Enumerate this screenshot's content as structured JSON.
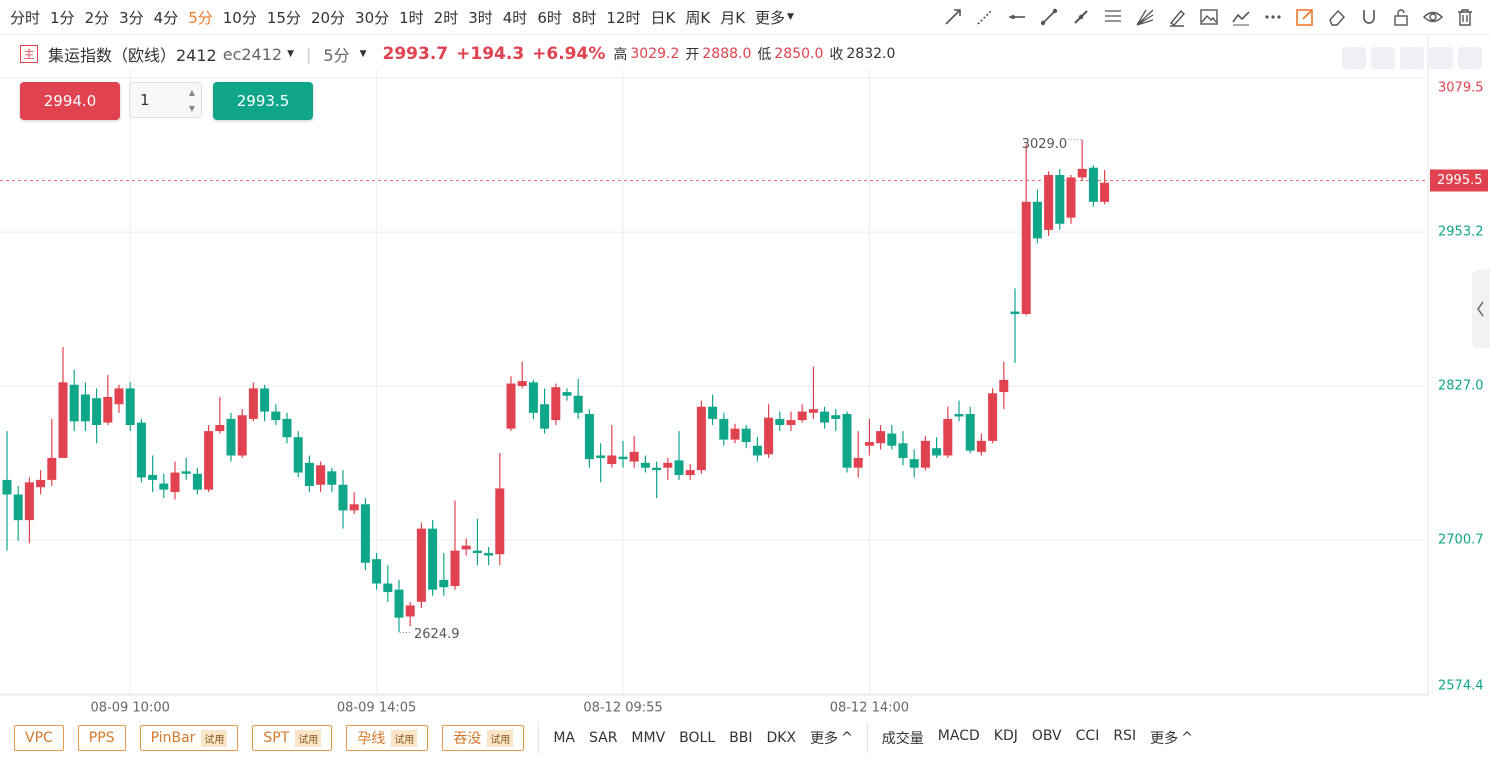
{
  "toolbar": {
    "periods": [
      {
        "label": "分时"
      },
      {
        "label": "1分"
      },
      {
        "label": "2分"
      },
      {
        "label": "3分"
      },
      {
        "label": "4分"
      },
      {
        "label": "5分",
        "active": true
      },
      {
        "label": "10分"
      },
      {
        "label": "15分"
      },
      {
        "label": "20分"
      },
      {
        "label": "30分"
      },
      {
        "label": "1时"
      },
      {
        "label": "2时"
      },
      {
        "label": "3时"
      },
      {
        "label": "4时"
      },
      {
        "label": "6时"
      },
      {
        "label": "8时"
      },
      {
        "label": "12时"
      },
      {
        "label": "日K"
      },
      {
        "label": "周K"
      },
      {
        "label": "月K"
      }
    ],
    "more": "更多"
  },
  "symbol_bar": {
    "badge": "主",
    "name": "集运指数（欧线）2412",
    "code": "ec2412",
    "period": "5分",
    "last": "2993.7",
    "change": "+194.3",
    "change_pct": "+6.94%",
    "high_label": "高",
    "high": "3029.2",
    "open_label": "开",
    "open": "2888.0",
    "low_label": "低",
    "low": "2850.0",
    "close_label": "收",
    "close": "2832.0"
  },
  "order": {
    "sell_price": "2994.0",
    "quantity": "1",
    "buy_price": "2993.5"
  },
  "chart_data": {
    "type": "candlestick",
    "categories": [
      null,
      null,
      null,
      null,
      null,
      null,
      null,
      null,
      null,
      null,
      null,
      "08-09 10:00",
      null,
      null,
      null,
      null,
      null,
      null,
      null,
      null,
      null,
      null,
      null,
      null,
      null,
      null,
      null,
      null,
      null,
      null,
      null,
      null,
      null,
      "08-09 14:05",
      null,
      null,
      null,
      null,
      null,
      null,
      null,
      null,
      null,
      null,
      null,
      null,
      null,
      null,
      null,
      null,
      null,
      null,
      null,
      null,
      null,
      "08-12 09:55",
      null,
      null,
      null,
      null,
      null,
      null,
      null,
      null,
      null,
      null,
      null,
      null,
      null,
      null,
      null,
      null,
      null,
      null,
      null,
      null,
      null,
      "08-12 14:00",
      null,
      null,
      null,
      null,
      null,
      null,
      null,
      null,
      null,
      null,
      null,
      null,
      null,
      null,
      null,
      null,
      null,
      null,
      null,
      null,
      null
    ],
    "open": [
      2750,
      2738,
      2717,
      2744,
      2750,
      2768,
      2828,
      2820,
      2817,
      2797,
      2812,
      2825,
      2797,
      2754,
      2747,
      2740,
      2757,
      2755,
      2742,
      2790,
      2800,
      2770,
      2800,
      2825,
      2806,
      2800,
      2785,
      2764,
      2746,
      2757,
      2746,
      2725,
      2730,
      2685,
      2665,
      2660,
      2638,
      2650,
      2710,
      2668,
      2663,
      2693,
      2692,
      2690,
      2689,
      2792,
      2827,
      2830,
      2812,
      2799,
      2822,
      2819,
      2804,
      2770,
      2763,
      2769,
      2765,
      2764,
      2760,
      2760,
      2766,
      2754,
      2758,
      2810,
      2800,
      2783,
      2792,
      2778,
      2771,
      2800,
      2795,
      2799,
      2805,
      2806,
      2803,
      2804,
      2760,
      2778,
      2780,
      2788,
      2780,
      2767,
      2760,
      2776,
      2770,
      2804,
      2804,
      2773,
      2782,
      2822,
      2888,
      2886,
      2978,
      2955,
      3000,
      2965,
      2998,
      3006,
      2978
    ],
    "high": [
      2790,
      2745,
      2752,
      2758,
      2800,
      2859,
      2840,
      2830,
      2825,
      2836,
      2828,
      2830,
      2800,
      2770,
      2755,
      2765,
      2768,
      2760,
      2795,
      2818,
      2805,
      2808,
      2830,
      2828,
      2812,
      2805,
      2790,
      2770,
      2765,
      2760,
      2758,
      2740,
      2735,
      2690,
      2680,
      2668,
      2650,
      2715,
      2717,
      2690,
      2733,
      2702,
      2718,
      2695,
      2772,
      2835,
      2847,
      2832,
      2825,
      2829,
      2825,
      2833,
      2808,
      2780,
      2795,
      2782,
      2786,
      2770,
      2765,
      2768,
      2790,
      2763,
      2815,
      2820,
      2805,
      2796,
      2795,
      2785,
      2812,
      2806,
      2806,
      2812,
      2843,
      2810,
      2808,
      2806,
      2790,
      2800,
      2795,
      2795,
      2790,
      2775,
      2786,
      2785,
      2810,
      2815,
      2810,
      2788,
      2825,
      2847,
      2907,
      3025,
      2988,
      3003,
      3005,
      3000,
      3029,
      3008,
      3004
    ],
    "low": [
      2692,
      2700,
      2698,
      2738,
      2745,
      2768,
      2790,
      2790,
      2780,
      2795,
      2805,
      2790,
      2748,
      2740,
      2735,
      2734,
      2750,
      2738,
      2740,
      2788,
      2765,
      2768,
      2798,
      2798,
      2795,
      2780,
      2752,
      2740,
      2740,
      2740,
      2710,
      2722,
      2676,
      2660,
      2650,
      2624.9,
      2630,
      2645,
      2655,
      2655,
      2660,
      2688,
      2680,
      2680,
      2680,
      2790,
      2825,
      2800,
      2788,
      2795,
      2815,
      2800,
      2760,
      2748,
      2760,
      2760,
      2760,
      2756,
      2735,
      2750,
      2750,
      2750,
      2755,
      2795,
      2778,
      2780,
      2776,
      2765,
      2768,
      2790,
      2790,
      2797,
      2800,
      2792,
      2790,
      2756,
      2752,
      2770,
      2775,
      2775,
      2762,
      2752,
      2758,
      2768,
      2768,
      2798,
      2772,
      2770,
      2780,
      2808,
      2846,
      2885,
      2944,
      2950,
      2955,
      2960,
      2995,
      2974,
      2976
    ],
    "close": [
      2738,
      2717,
      2748,
      2750,
      2768,
      2830,
      2798,
      2798,
      2795,
      2818,
      2825,
      2795,
      2752,
      2750,
      2742,
      2756,
      2755,
      2742,
      2790,
      2795,
      2770,
      2803,
      2825,
      2806,
      2799,
      2785,
      2756,
      2745,
      2762,
      2746,
      2725,
      2730,
      2682,
      2665,
      2658,
      2637,
      2647,
      2710,
      2660,
      2662,
      2692,
      2696,
      2690,
      2688,
      2743,
      2829,
      2831,
      2805,
      2792,
      2826,
      2819,
      2805,
      2767,
      2768,
      2770,
      2767,
      2773,
      2760,
      2758,
      2764,
      2754,
      2758,
      2810,
      2800,
      2783,
      2792,
      2781,
      2770,
      2801,
      2795,
      2799,
      2806,
      2808,
      2797,
      2800,
      2760,
      2768,
      2781,
      2790,
      2778,
      2768,
      2760,
      2782,
      2770,
      2800,
      2802,
      2774,
      2782,
      2821,
      2832,
      2886,
      2978,
      2948,
      3000,
      2960,
      2998,
      3005,
      2978,
      2993.7
    ],
    "ylim": [
      2573.6,
      3086.1
    ],
    "yticks": [
      2574.4,
      2700.7,
      {
        "value": 2827,
        "label": "2827.0"
      },
      2953.2,
      3079.5
    ],
    "current_price": 2995.5,
    "high_annotation": "3029.0",
    "low_annotation": "2624.9",
    "up_color": "#e0424f",
    "down_color": "#0fa68a",
    "grid": true
  },
  "footer": {
    "patterns": [
      {
        "name": "VPC"
      },
      {
        "name": "PPS"
      },
      {
        "name": "PinBar",
        "badge": "试用"
      },
      {
        "name": "SPT",
        "badge": "试用"
      },
      {
        "name": "孕线",
        "badge": "试用"
      },
      {
        "name": "吞没",
        "badge": "试用"
      }
    ],
    "main_indicators": [
      "MA",
      "SAR",
      "MMV",
      "BOLL",
      "BBI",
      "DKX"
    ],
    "main_more": "更多",
    "sub_indicators": [
      "成交量",
      "MACD",
      "KDJ",
      "OBV",
      "CCI",
      "RSI"
    ],
    "sub_more": "更多"
  }
}
